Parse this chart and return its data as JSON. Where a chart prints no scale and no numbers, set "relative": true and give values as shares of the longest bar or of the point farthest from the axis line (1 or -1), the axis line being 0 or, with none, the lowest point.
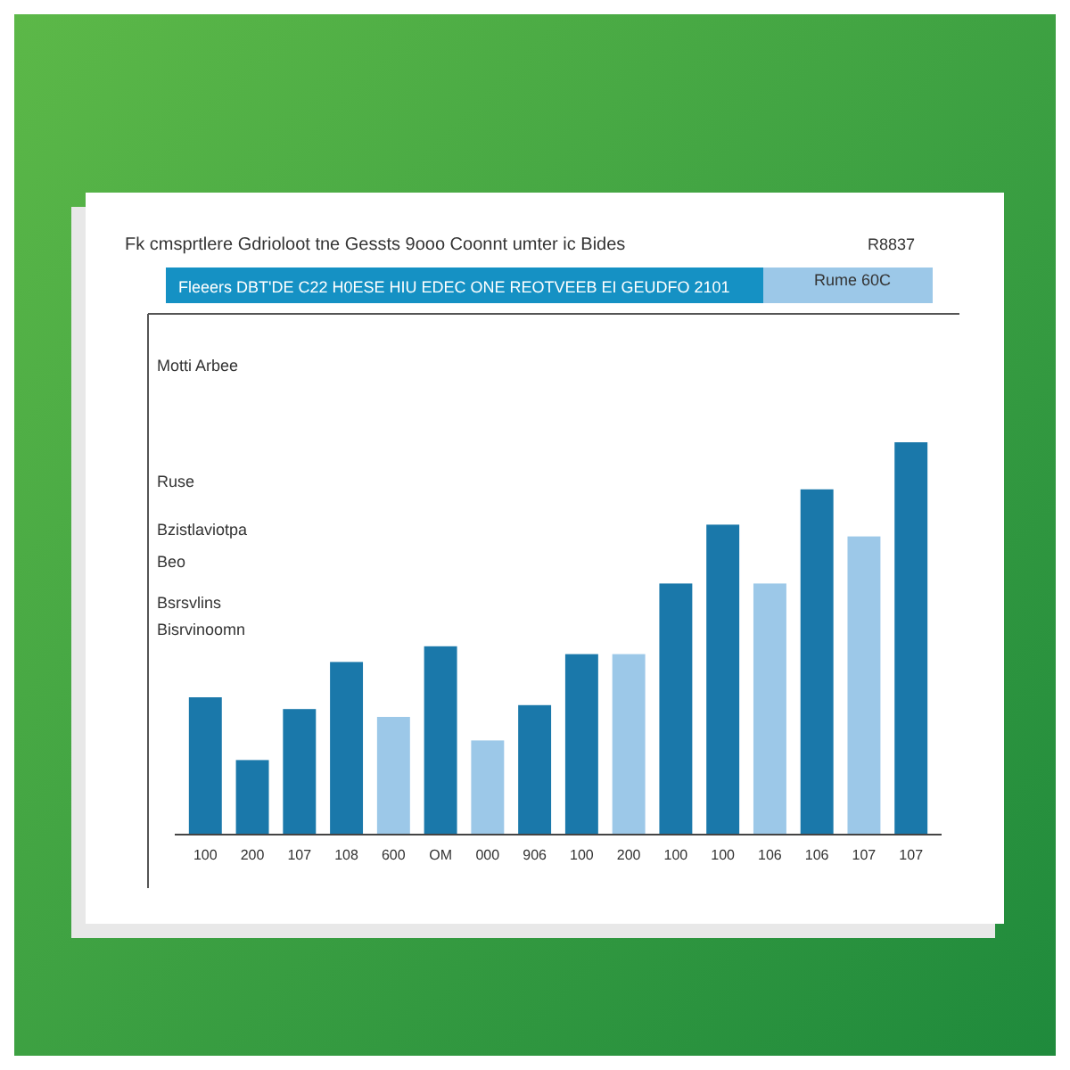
{
  "chart_data": {
    "type": "bar",
    "title": "Fk cmsprtlere Gdrioloot tne Gessts 9ooo Coonnt umter ic Bides",
    "subtitle": "Fleeers DBT'DE C22 H0ESE HIU EDEC ONE REOTVEEB EI GEUDFO 2101",
    "annotations": [
      "R8837",
      "Rume 60C",
      "Motti Arbee",
      "Ruse",
      "Bzistlaviotpa",
      "Beo",
      "Bsrsvlins",
      "Bisrvinoomn"
    ],
    "categories": [
      "100",
      "200",
      "107",
      "108",
      "600",
      "OM",
      "000",
      "906",
      "100",
      "200",
      "100",
      "100",
      "106",
      "106",
      "107",
      "107"
    ],
    "relative": true,
    "colors": [
      "#1a78aa",
      "#1a78aa",
      "#1a78aa",
      "#1a78aa",
      "#9cc8e8",
      "#1a78aa",
      "#9cc8e8",
      "#1a78aa",
      "#1a78aa",
      "#9cc8e8",
      "#1a78aa",
      "#1a78aa",
      "#9cc8e8",
      "#1a78aa",
      "#9cc8e8",
      "#1a78aa"
    ],
    "values": [
      0.35,
      0.19,
      0.32,
      0.44,
      0.3,
      0.48,
      0.24,
      0.33,
      0.46,
      0.46,
      0.64,
      0.79,
      0.64,
      0.88,
      0.76,
      1
    ]
  }
}
